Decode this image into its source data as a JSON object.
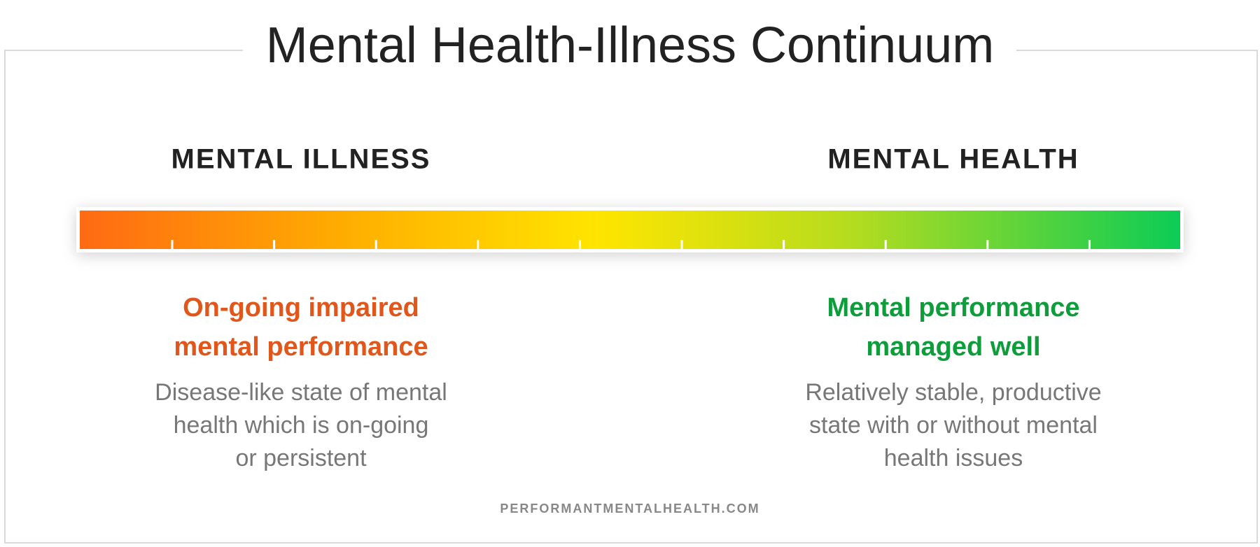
{
  "title": "Mental Health-Illness Continuum",
  "scale": {
    "left_label": "MENTAL ILLNESS",
    "right_label": "MENTAL HEALTH"
  },
  "left": {
    "heading": [
      "On-going impaired",
      "mental performance"
    ],
    "description": [
      "Disease-like state of mental",
      "health which is on-going",
      "or persistent"
    ]
  },
  "right": {
    "heading": [
      "Mental performance",
      "managed well"
    ],
    "description": [
      "Relatively stable, productive",
      "state with or without mental",
      "health issues"
    ]
  },
  "footer": "PERFORMANTMENTALHEALTH.COM"
}
